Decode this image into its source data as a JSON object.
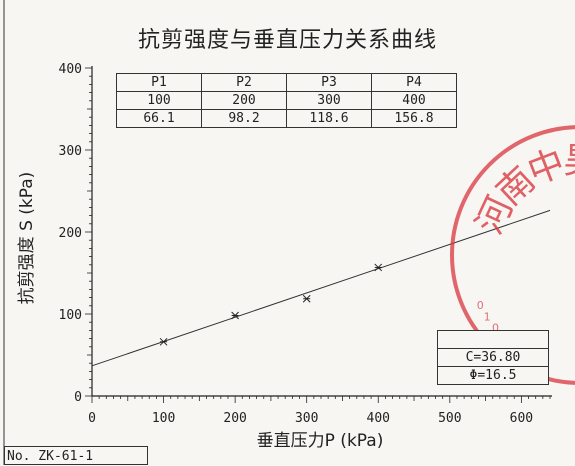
{
  "document_number": "No. ZK-61-1",
  "stamp_text": "河南中昊检",
  "stamp_color": "#d9363e",
  "chart_data": {
    "type": "scatter",
    "title": "抗剪强度与垂直压力关系曲线",
    "xlabel": "垂直压力P (kPa)",
    "ylabel": "抗剪强度 S (kPa)",
    "xlim": [
      0,
      640
    ],
    "ylim": [
      0,
      400
    ],
    "x_ticks": [
      0,
      100,
      200,
      300,
      400,
      500,
      600
    ],
    "y_ticks": [
      0,
      100,
      200,
      300,
      400
    ],
    "grid": false,
    "points": [
      {
        "x": 100,
        "y": 66.1
      },
      {
        "x": 200,
        "y": 98.2
      },
      {
        "x": 300,
        "y": 118.6
      },
      {
        "x": 400,
        "y": 156.8
      }
    ],
    "fit_line": {
      "intercept": 36.8,
      "slope_angle_deg": 16.5
    },
    "table": {
      "header": [
        "P1",
        "P2",
        "P3",
        "P4"
      ],
      "rows": [
        [
          "100",
          "200",
          "300",
          "400"
        ],
        [
          "66.1",
          "98.2",
          "118.6",
          "156.8"
        ]
      ]
    },
    "params": [
      "",
      "C=36.80",
      "Φ=16.5"
    ]
  }
}
